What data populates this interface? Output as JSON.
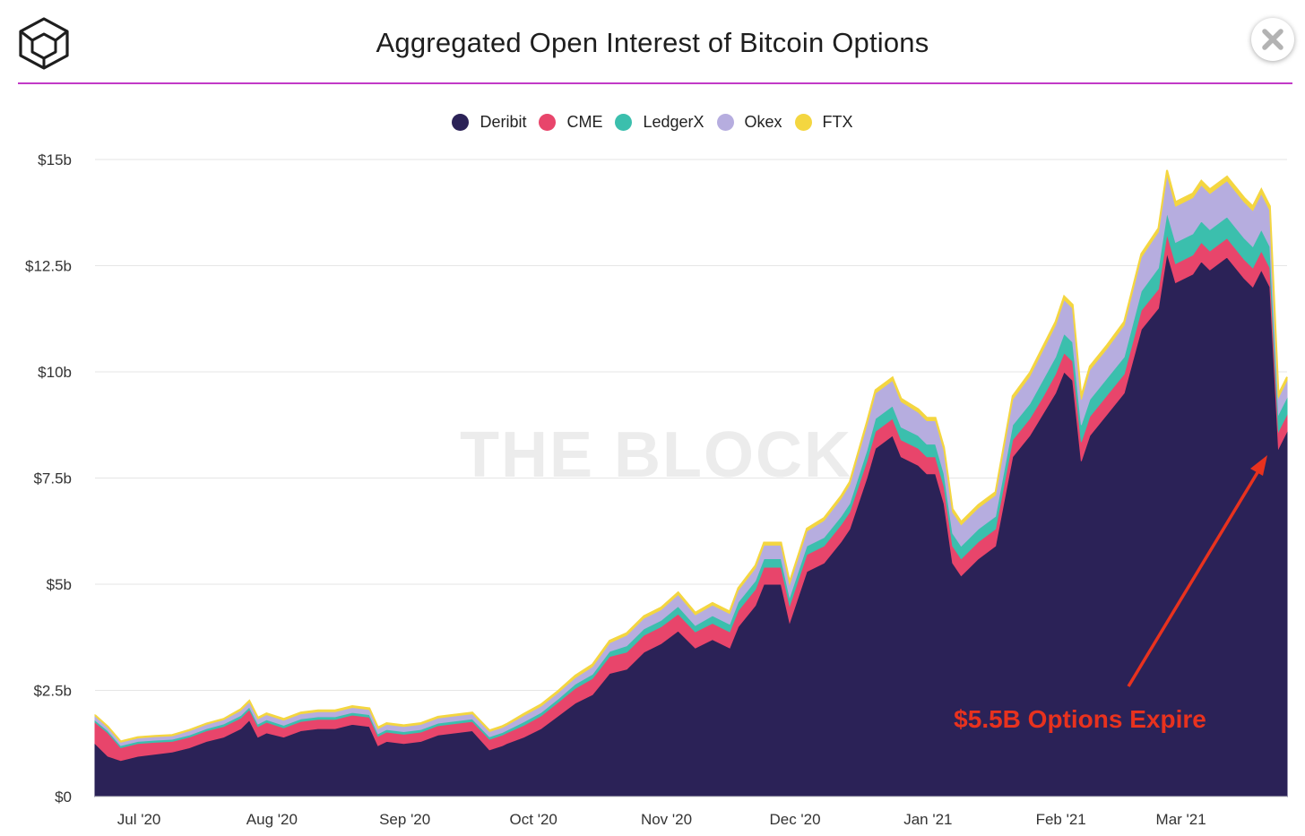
{
  "header": {
    "title": "Aggregated Open Interest of Bitcoin Options",
    "logo_icon": "the-block-cube-icon",
    "close_icon": "close-icon"
  },
  "colors": {
    "divider": "#c23ac7",
    "annotation": "#e8321e"
  },
  "watermark": "THE BLOCK",
  "annotation": {
    "text": "$5.5B Options Expire",
    "points_to": "2021-03-26"
  },
  "chart_data": {
    "type": "area",
    "stacked": true,
    "title": "Aggregated Open Interest of Bitcoin Options",
    "xlabel": "",
    "ylabel": "",
    "ylim": [
      0,
      15
    ],
    "y_unit": "billion USD",
    "y_ticks": [
      {
        "value": 0,
        "label": "$0"
      },
      {
        "value": 2.5,
        "label": "$2.5b"
      },
      {
        "value": 5,
        "label": "$5b"
      },
      {
        "value": 7.5,
        "label": "$7.5b"
      },
      {
        "value": 10,
        "label": "$10b"
      },
      {
        "value": 12.5,
        "label": "$12.5b"
      },
      {
        "value": 15,
        "label": "$15b"
      }
    ],
    "x_ticks": [
      {
        "day": 9,
        "label": "Jul '20"
      },
      {
        "day": 40,
        "label": "Aug '20"
      },
      {
        "day": 71,
        "label": "Sep '20"
      },
      {
        "day": 101,
        "label": "Oct '20"
      },
      {
        "day": 132,
        "label": "Nov '20"
      },
      {
        "day": 162,
        "label": "Dec '20"
      },
      {
        "day": 193,
        "label": "Jan '21"
      },
      {
        "day": 224,
        "label": "Feb '21"
      },
      {
        "day": 252,
        "label": "Mar '21"
      }
    ],
    "x_domain_days": [
      0,
      278
    ],
    "legend_position": "top-center",
    "series": [
      {
        "name": "Deribit",
        "color": "#2b2257"
      },
      {
        "name": "CME",
        "color": "#e8456b"
      },
      {
        "name": "LedgerX",
        "color": "#3bbfad"
      },
      {
        "name": "Okex",
        "color": "#b6addf"
      },
      {
        "name": "FTX",
        "color": "#f4d640"
      }
    ],
    "days": [
      0,
      3,
      6,
      10,
      14,
      18,
      22,
      26,
      30,
      34,
      36,
      38,
      40,
      44,
      48,
      52,
      56,
      60,
      64,
      66,
      68,
      72,
      76,
      80,
      84,
      88,
      92,
      95,
      96,
      100,
      104,
      108,
      112,
      116,
      120,
      124,
      128,
      132,
      136,
      140,
      144,
      148,
      150,
      154,
      156,
      160,
      162,
      166,
      170,
      174,
      176,
      180,
      182,
      186,
      188,
      192,
      194,
      196,
      198,
      200,
      202,
      206,
      210,
      214,
      218,
      221,
      224,
      226,
      228,
      230,
      232,
      236,
      240,
      244,
      248,
      250,
      252,
      256,
      258,
      260,
      264,
      268,
      270,
      272,
      274,
      276,
      278
    ],
    "values": {
      "Deribit": [
        1.25,
        0.95,
        0.85,
        0.95,
        1.0,
        1.05,
        1.15,
        1.3,
        1.4,
        1.6,
        1.8,
        1.4,
        1.5,
        1.4,
        1.55,
        1.6,
        1.6,
        1.7,
        1.65,
        1.2,
        1.3,
        1.25,
        1.3,
        1.45,
        1.5,
        1.55,
        1.1,
        1.2,
        1.25,
        1.4,
        1.6,
        1.9,
        2.2,
        2.4,
        2.9,
        3.0,
        3.4,
        3.6,
        3.9,
        3.5,
        3.7,
        3.5,
        4.0,
        4.5,
        5.0,
        5.0,
        4.1,
        5.3,
        5.5,
        6.0,
        6.3,
        7.5,
        8.2,
        8.5,
        8.0,
        7.8,
        7.6,
        7.6,
        6.9,
        5.5,
        5.2,
        5.6,
        5.9,
        8.0,
        8.5,
        9.0,
        9.5,
        10.0,
        9.8,
        7.9,
        8.5,
        9.0,
        9.5,
        11.0,
        11.5,
        12.8,
        12.1,
        12.3,
        12.6,
        12.4,
        12.7,
        12.2,
        12.0,
        12.4,
        12.0,
        8.2,
        8.6
      ],
      "CME": [
        0.5,
        0.55,
        0.3,
        0.3,
        0.28,
        0.25,
        0.25,
        0.25,
        0.25,
        0.25,
        0.25,
        0.25,
        0.25,
        0.22,
        0.22,
        0.22,
        0.22,
        0.22,
        0.22,
        0.22,
        0.22,
        0.22,
        0.22,
        0.22,
        0.22,
        0.22,
        0.25,
        0.25,
        0.25,
        0.28,
        0.3,
        0.32,
        0.35,
        0.38,
        0.4,
        0.4,
        0.4,
        0.4,
        0.4,
        0.38,
        0.38,
        0.38,
        0.38,
        0.38,
        0.4,
        0.4,
        0.4,
        0.4,
        0.4,
        0.4,
        0.4,
        0.4,
        0.4,
        0.4,
        0.4,
        0.4,
        0.4,
        0.4,
        0.4,
        0.4,
        0.4,
        0.4,
        0.4,
        0.4,
        0.4,
        0.4,
        0.45,
        0.45,
        0.45,
        0.45,
        0.45,
        0.45,
        0.45,
        0.45,
        0.45,
        0.45,
        0.45,
        0.45,
        0.45,
        0.45,
        0.45,
        0.45,
        0.45,
        0.45,
        0.45,
        0.4,
        0.4
      ],
      "LedgerX": [
        0.05,
        0.05,
        0.05,
        0.05,
        0.05,
        0.05,
        0.05,
        0.05,
        0.06,
        0.06,
        0.06,
        0.06,
        0.06,
        0.06,
        0.06,
        0.06,
        0.06,
        0.06,
        0.06,
        0.06,
        0.06,
        0.06,
        0.06,
        0.06,
        0.06,
        0.06,
        0.06,
        0.06,
        0.06,
        0.08,
        0.08,
        0.08,
        0.1,
        0.1,
        0.12,
        0.15,
        0.15,
        0.15,
        0.18,
        0.15,
        0.18,
        0.18,
        0.2,
        0.2,
        0.2,
        0.2,
        0.2,
        0.2,
        0.2,
        0.2,
        0.2,
        0.25,
        0.3,
        0.3,
        0.3,
        0.3,
        0.3,
        0.3,
        0.3,
        0.3,
        0.3,
        0.3,
        0.3,
        0.35,
        0.35,
        0.4,
        0.4,
        0.45,
        0.45,
        0.4,
        0.4,
        0.4,
        0.4,
        0.45,
        0.5,
        0.5,
        0.5,
        0.5,
        0.5,
        0.5,
        0.5,
        0.5,
        0.5,
        0.5,
        0.5,
        0.4,
        0.4
      ],
      "Okex": [
        0.1,
        0.08,
        0.08,
        0.08,
        0.08,
        0.08,
        0.1,
        0.1,
        0.1,
        0.12,
        0.12,
        0.12,
        0.12,
        0.12,
        0.12,
        0.12,
        0.12,
        0.12,
        0.12,
        0.12,
        0.12,
        0.12,
        0.12,
        0.12,
        0.12,
        0.12,
        0.12,
        0.12,
        0.12,
        0.15,
        0.15,
        0.15,
        0.15,
        0.18,
        0.2,
        0.25,
        0.25,
        0.25,
        0.28,
        0.25,
        0.25,
        0.25,
        0.28,
        0.3,
        0.32,
        0.32,
        0.3,
        0.35,
        0.4,
        0.42,
        0.45,
        0.6,
        0.6,
        0.6,
        0.6,
        0.55,
        0.55,
        0.55,
        0.55,
        0.5,
        0.5,
        0.5,
        0.5,
        0.6,
        0.65,
        0.7,
        0.75,
        0.8,
        0.8,
        0.6,
        0.7,
        0.7,
        0.75,
        0.8,
        0.85,
        0.9,
        0.85,
        0.85,
        0.85,
        0.85,
        0.85,
        0.85,
        0.85,
        0.85,
        0.85,
        0.4,
        0.4
      ],
      "FTX": [
        0.02,
        0.02,
        0.02,
        0.02,
        0.02,
        0.02,
        0.02,
        0.02,
        0.02,
        0.03,
        0.03,
        0.03,
        0.03,
        0.03,
        0.03,
        0.03,
        0.03,
        0.03,
        0.03,
        0.03,
        0.03,
        0.03,
        0.03,
        0.03,
        0.03,
        0.03,
        0.03,
        0.03,
        0.03,
        0.04,
        0.04,
        0.04,
        0.05,
        0.05,
        0.05,
        0.05,
        0.05,
        0.05,
        0.05,
        0.05,
        0.05,
        0.05,
        0.05,
        0.06,
        0.06,
        0.06,
        0.06,
        0.06,
        0.06,
        0.06,
        0.06,
        0.07,
        0.07,
        0.07,
        0.07,
        0.07,
        0.07,
        0.07,
        0.07,
        0.07,
        0.07,
        0.07,
        0.07,
        0.08,
        0.08,
        0.08,
        0.08,
        0.08,
        0.08,
        0.08,
        0.08,
        0.08,
        0.08,
        0.08,
        0.08,
        0.1,
        0.1,
        0.1,
        0.1,
        0.1,
        0.1,
        0.1,
        0.1,
        0.1,
        0.1,
        0.08,
        0.08
      ]
    }
  }
}
